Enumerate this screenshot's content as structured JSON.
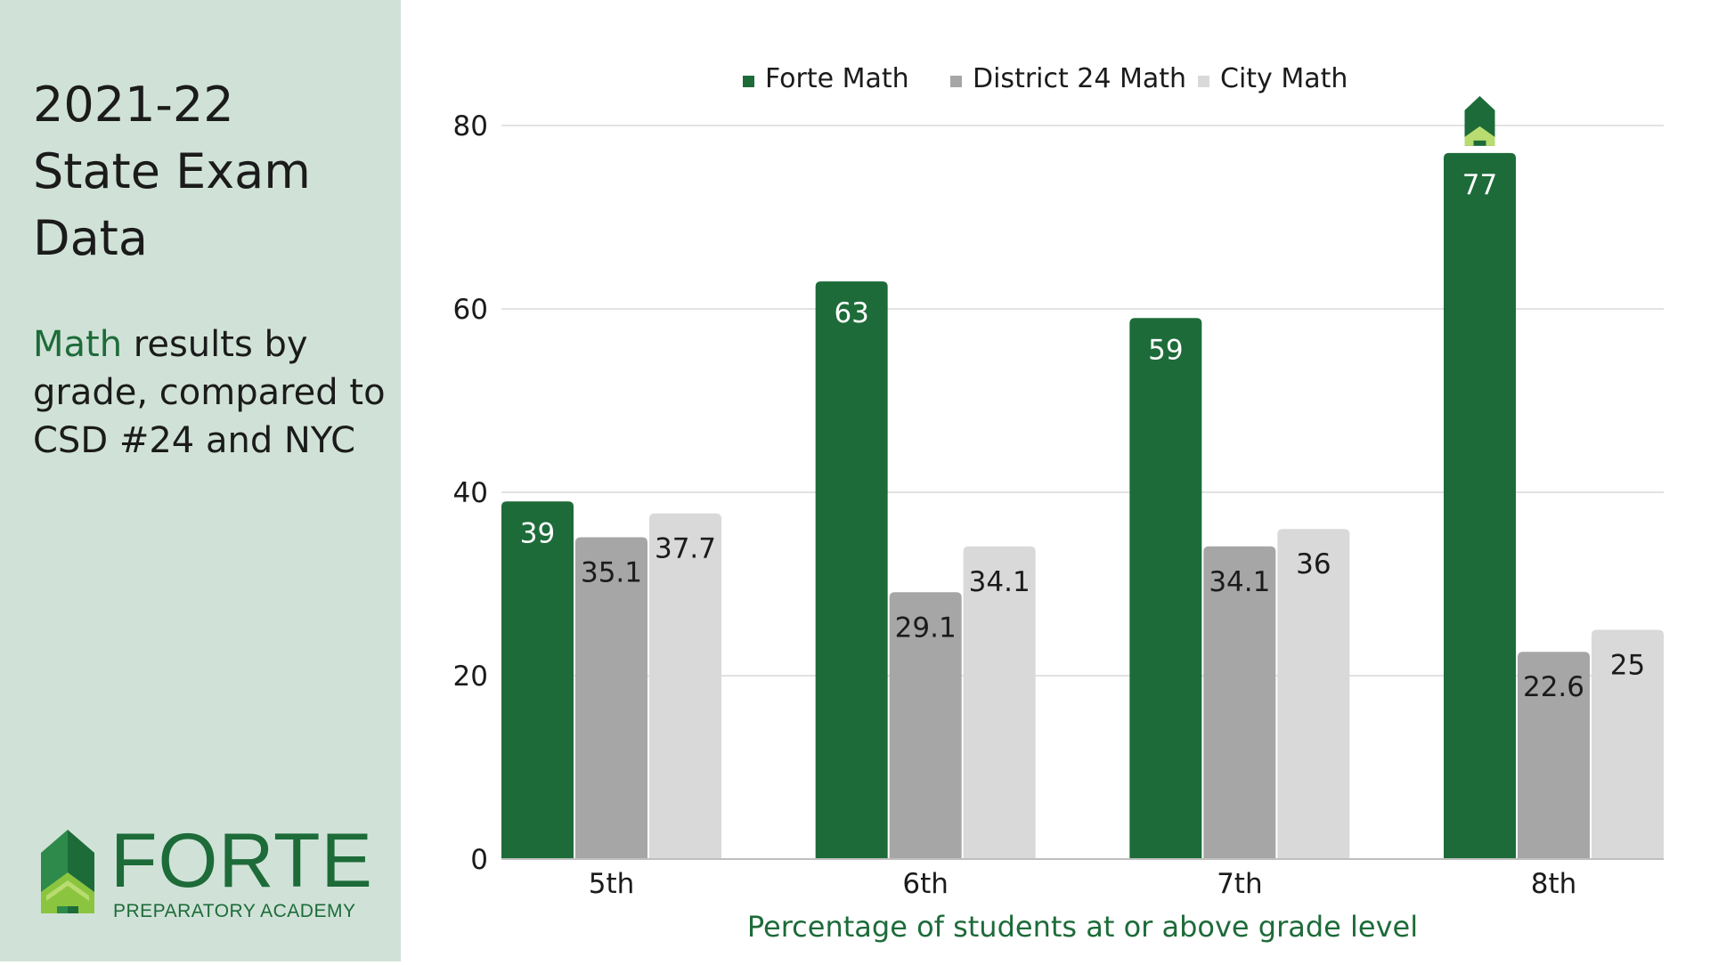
{
  "sidebar": {
    "title_lines": [
      "2021-22",
      "State Exam",
      "Data"
    ],
    "subtitle_accent": "Math",
    "subtitle_rest": " results by grade, compared to CSD #24 and NYC",
    "accent_color": "#1d6b39"
  },
  "logo": {
    "name": "FORTE",
    "tagline": "PREPARATORY ACADEMY"
  },
  "chart_data": {
    "type": "bar",
    "title": "",
    "categories": [
      "5th",
      "6th",
      "7th",
      "8th"
    ],
    "series": [
      {
        "name": "Forte Math",
        "values": [
          39,
          63,
          59,
          77
        ],
        "color": "#1d6b39",
        "label_color": "#ffffff"
      },
      {
        "name": "District 24 Math",
        "values": [
          35.1,
          29.1,
          34.1,
          22.6
        ],
        "color": "#a6a6a6",
        "label_color": "#1b1b1b"
      },
      {
        "name": "City Math",
        "values": [
          37.7,
          34.1,
          36,
          25
        ],
        "color": "#d9d9d9",
        "label_color": "#1b1b1b"
      }
    ],
    "ylim": [
      0,
      80
    ],
    "yticks": [
      0,
      20,
      40,
      60,
      80
    ],
    "xlabel": "Percentage of students at or above grade level",
    "ylabel": "",
    "legend_position": "top",
    "grid": true,
    "xlabel_color": "#1d6b39"
  }
}
